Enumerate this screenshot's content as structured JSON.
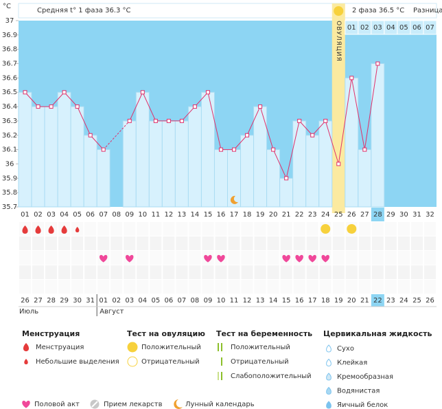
{
  "header": {
    "unit": "°C",
    "phase1": "Средняя t° 1 фаза 36.3 °C",
    "phase2": "2 фаза 36.5 °C",
    "diff": "Разница t"
  },
  "chart_data": {
    "type": "line",
    "categories": [
      "01",
      "02",
      "03",
      "04",
      "05",
      "06",
      "07",
      "08",
      "09",
      "10",
      "11",
      "12",
      "13",
      "14",
      "15",
      "16",
      "17",
      "18",
      "19",
      "20",
      "21",
      "22",
      "23",
      "24",
      "25",
      "26",
      "27",
      "28",
      "29",
      "30",
      "31",
      "32"
    ],
    "values": [
      36.5,
      36.4,
      36.4,
      36.5,
      36.4,
      36.2,
      36.1,
      null,
      36.3,
      36.5,
      36.3,
      36.3,
      36.3,
      36.4,
      36.5,
      36.1,
      36.1,
      36.2,
      36.4,
      36.1,
      35.9,
      36.3,
      36.2,
      36.3,
      36.0,
      36.6,
      36.1,
      36.7,
      null,
      null,
      null,
      null
    ],
    "color": "#e0306a",
    "ylim": [
      35.7,
      37
    ],
    "yticks": [
      37,
      36.9,
      36.8,
      36.7,
      36.6,
      36.5,
      36.4,
      36.3,
      36.2,
      36.1,
      36,
      35.9,
      35.8,
      35.7
    ],
    "ovulation": {
      "label": "ОВУЛЯЦИЯ",
      "day": "25"
    },
    "phase2_days": [
      "01",
      "02",
      "03",
      "04",
      "05",
      "06",
      "07"
    ],
    "today": "28",
    "moon_day": "17"
  },
  "events": {
    "menstruation_heavy": [
      "01",
      "02",
      "03",
      "04"
    ],
    "menstruation_light": [
      "05"
    ],
    "ovulation_test_positive": [
      "24",
      "26"
    ],
    "intercourse": [
      "07",
      "09",
      "15",
      "16",
      "21",
      "22",
      "23",
      "24"
    ]
  },
  "calendar": {
    "dates": [
      "26",
      "27",
      "28",
      "29",
      "30",
      "31",
      "01",
      "02",
      "03",
      "04",
      "05",
      "06",
      "07",
      "08",
      "09",
      "10",
      "11",
      "12",
      "13",
      "14",
      "15",
      "16",
      "17",
      "18",
      "19",
      "20",
      "21",
      "22",
      "23",
      "24",
      "25",
      "26"
    ],
    "weekend": [
      true,
      true,
      false,
      false,
      false,
      false,
      false,
      true,
      true,
      false,
      false,
      false,
      false,
      false,
      true,
      true,
      false,
      false,
      false,
      false,
      false,
      true,
      true,
      false,
      false,
      false,
      false,
      false,
      true,
      true,
      false,
      false
    ],
    "months": [
      "Июль",
      "Август"
    ]
  },
  "legend": {
    "menstruation": {
      "title": "Менструация",
      "items": [
        "Менструация",
        "Небольшие выделения"
      ]
    },
    "ovulation_test": {
      "title": "Тест на овуляцию",
      "items": [
        "Положительный",
        "Отрицательный"
      ]
    },
    "pregnancy_test": {
      "title": "Тест на беременность",
      "items": [
        "Положительный",
        "Отрицательный",
        "Слабоположительный"
      ]
    },
    "cervical_fluid": {
      "title": "Цервикальная жидкость",
      "items": [
        "Сухо",
        "Клейкая",
        "Кремообразная",
        "Водянистая",
        "Яичный белок"
      ]
    },
    "other": [
      "Половой акт",
      "Прием лекарств",
      "Лунный календарь"
    ]
  }
}
